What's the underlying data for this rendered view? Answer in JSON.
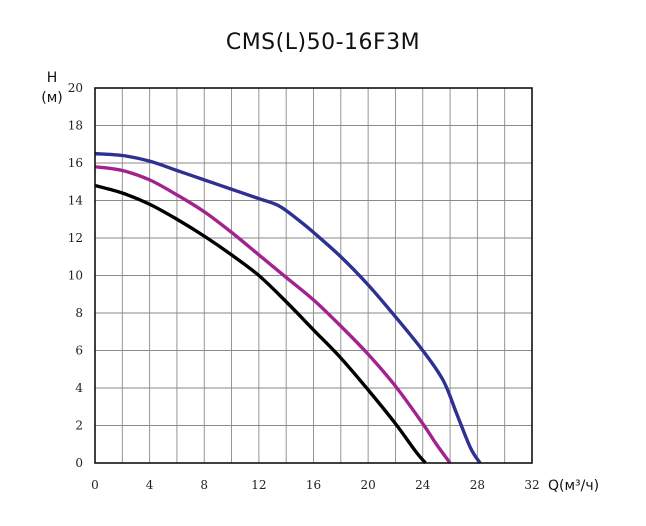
{
  "chart_data": {
    "type": "line",
    "title": "CMS(L)50-16F3M",
    "ylabel_line1": "H",
    "ylabel_line2": "(м)",
    "xlabel": "Q(м³/ч)",
    "xlim": [
      0,
      32
    ],
    "ylim": [
      0,
      20
    ],
    "xticks": [
      0,
      4,
      8,
      12,
      16,
      20,
      24,
      28,
      32
    ],
    "yticks": [
      0,
      2,
      4,
      6,
      8,
      10,
      12,
      14,
      16,
      18,
      20
    ],
    "grid": true,
    "legend": "none",
    "series": [
      {
        "color": "#2e3192",
        "x": [
          0,
          2,
          4,
          6,
          8,
          10,
          12,
          13.5,
          15,
          16,
          18,
          20,
          22,
          24,
          25.5,
          26.5,
          27.5,
          28.2
        ],
        "y": [
          16.5,
          16.4,
          16.1,
          15.6,
          15.1,
          14.6,
          14.1,
          13.7,
          12.9,
          12.3,
          11.0,
          9.5,
          7.8,
          6.0,
          4.4,
          2.6,
          0.8,
          0.0
        ]
      },
      {
        "color": "#a3238e",
        "x": [
          0,
          2,
          4,
          6,
          8,
          10,
          12,
          14,
          16,
          18,
          20,
          22,
          24,
          25,
          26
        ],
        "y": [
          15.8,
          15.6,
          15.1,
          14.3,
          13.4,
          12.3,
          11.1,
          9.9,
          8.7,
          7.3,
          5.8,
          4.1,
          2.1,
          1.0,
          0.0
        ]
      },
      {
        "color": "#000000",
        "x": [
          0,
          2,
          4,
          6,
          8,
          10,
          12,
          14,
          16,
          18,
          20,
          22,
          23.5,
          24.2
        ],
        "y": [
          14.8,
          14.4,
          13.8,
          13.0,
          12.1,
          11.1,
          10.0,
          8.6,
          7.1,
          5.6,
          3.9,
          2.1,
          0.6,
          0.0
        ]
      }
    ]
  }
}
